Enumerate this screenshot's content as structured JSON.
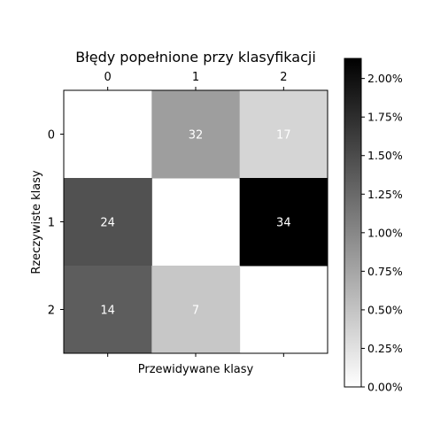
{
  "chart_data": {
    "type": "heatmap",
    "title": "Błędy popełnione przy klasyfikacji",
    "xlabel": "Przewidywane klasy",
    "ylabel": "Rzeczywiste klasy",
    "x_categories": [
      "0",
      "1",
      "2"
    ],
    "y_categories": [
      "0",
      "1",
      "2"
    ],
    "x_ticks_position": "top",
    "cells": [
      {
        "row": 0,
        "col": 1,
        "label": "32",
        "percent": 0.81
      },
      {
        "row": 0,
        "col": 2,
        "label": "17",
        "percent": 0.35
      },
      {
        "row": 1,
        "col": 0,
        "label": "24",
        "percent": 1.45
      },
      {
        "row": 1,
        "col": 2,
        "label": "34",
        "percent": 2.13
      },
      {
        "row": 2,
        "col": 0,
        "label": "14",
        "percent": 1.35
      },
      {
        "row": 2,
        "col": 1,
        "label": "7",
        "percent": 0.47
      }
    ],
    "diagonal_blank": true,
    "colorbar": {
      "min": 0.0,
      "max": 2.13,
      "ticks": [
        "0.00%",
        "0.25%",
        "0.50%",
        "0.75%",
        "1.00%",
        "1.25%",
        "1.50%",
        "1.75%",
        "2.00%"
      ],
      "tick_values": [
        0,
        0.25,
        0.5,
        0.75,
        1.0,
        1.25,
        1.5,
        1.75,
        2.0
      ],
      "colormap": "Greys"
    },
    "grid": false
  }
}
